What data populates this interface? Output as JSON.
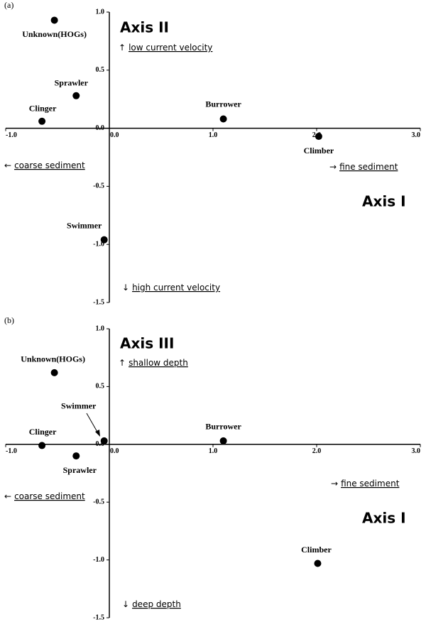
{
  "chart_data": [
    {
      "type": "scatter",
      "panel_label": "(a)",
      "x_axis_title": "Axis I",
      "y_axis_title": "Axis II",
      "color": "#000000",
      "xlim": [
        -1,
        3
      ],
      "ylim": [
        -1.5,
        1
      ],
      "xticks": [
        {
          "value": -1,
          "label": "-1.0"
        },
        {
          "value": 0,
          "label": "0.0"
        },
        {
          "value": 1,
          "label": "1.0"
        },
        {
          "value": 2,
          "label": "2.0"
        },
        {
          "value": 3,
          "label": "3.0"
        }
      ],
      "yticks": [
        -1.5,
        {
          "value": -1,
          "label": "-1.0"
        },
        -0.5,
        {
          "value": 0,
          "label": "0.0"
        },
        0.5,
        {
          "value": 1,
          "label": "1.0"
        }
      ],
      "labels": [
        "Unknown(HOGs)",
        "Sprawler",
        "Clinger",
        "Burrower",
        "Climber",
        "Swimmer"
      ],
      "x": [
        -0.53,
        -0.32,
        -0.65,
        1.1,
        2.02,
        -0.05
      ],
      "values": [
        0.93,
        0.28,
        0.06,
        0.08,
        -0.07,
        -0.96
      ],
      "annotations": [
        {
          "arrow": "↑",
          "text": "low current velocity"
        },
        {
          "arrow": "←",
          "text": "coarse sediment"
        },
        {
          "arrow": "→",
          "text": "fine sediment"
        },
        {
          "arrow": "↓",
          "text": "high current velocity"
        }
      ]
    },
    {
      "type": "scatter",
      "panel_label": "(b)",
      "x_axis_title": "Axis I",
      "y_axis_title": "Axis III",
      "color": "#000000",
      "xlim": [
        -1,
        3
      ],
      "ylim": [
        -1.5,
        1
      ],
      "xticks": [
        {
          "value": -1,
          "label": "-1.0"
        },
        {
          "value": 0,
          "label": "0.0"
        },
        {
          "value": 1,
          "label": "1.0"
        },
        {
          "value": 2,
          "label": "2.0"
        },
        {
          "value": 3,
          "label": "3.0"
        }
      ],
      "yticks": [
        -1.5,
        {
          "value": -1,
          "label": "-1.0"
        },
        -0.5,
        {
          "value": 0,
          "label": "0.0"
        },
        0.5,
        {
          "value": 1,
          "label": "1.0"
        }
      ],
      "labels": [
        "Unknown(HOGs)",
        "Swimmer",
        "Clinger",
        "Sprawler",
        "Burrower",
        "Climber"
      ],
      "x": [
        -0.53,
        -0.05,
        -0.65,
        -0.32,
        1.1,
        2.01
      ],
      "values": [
        0.62,
        0.03,
        -0.01,
        -0.1,
        0.03,
        -1.03
      ],
      "annotations": [
        {
          "arrow": "↑",
          "text": "shallow depth"
        },
        {
          "arrow": "←",
          "text": "coarse sediment"
        },
        {
          "arrow": "→",
          "text": "fine sediment"
        },
        {
          "arrow": "↓",
          "text": "deep depth"
        }
      ]
    }
  ]
}
